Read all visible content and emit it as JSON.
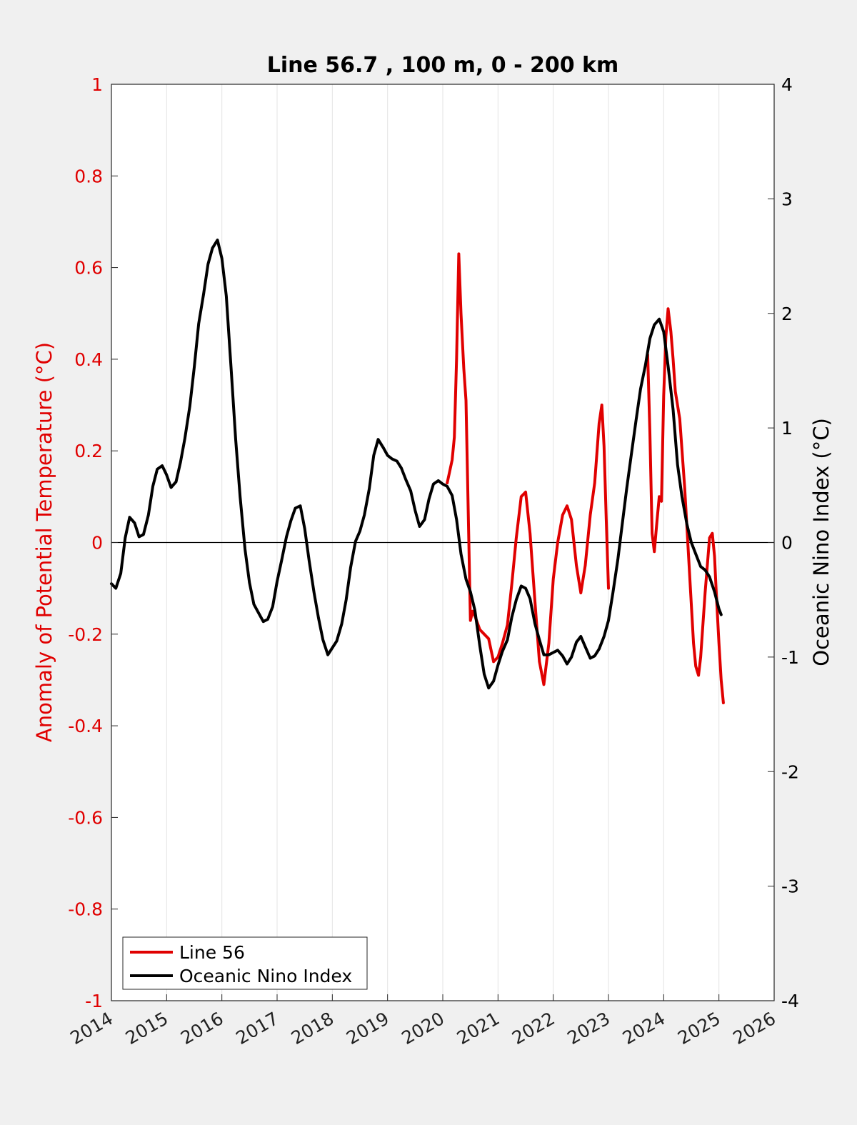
{
  "chart_data": {
    "type": "line",
    "title": "Line 56.7 , 100 m, 0 - 200 km",
    "xlabel": "",
    "ylabel_left": "Anomaly of Potential Temperature (°C)",
    "ylabel_right": "Oceanic Nino Index (°C)",
    "xlim": [
      2014,
      2026
    ],
    "ylim_left": [
      -1,
      1
    ],
    "ylim_right": [
      -4,
      4
    ],
    "x_ticks": [
      "2014",
      "2015",
      "2016",
      "2017",
      "2018",
      "2019",
      "2020",
      "2021",
      "2022",
      "2023",
      "2024",
      "2025",
      "2026"
    ],
    "y_ticks_left": [
      "-1",
      "-0.8",
      "-0.6",
      "-0.4",
      "-0.2",
      "0",
      "0.2",
      "0.4",
      "0.6",
      "0.8",
      "1"
    ],
    "y_ticks_right": [
      "-4",
      "-3",
      "-2",
      "-1",
      "0",
      "1",
      "2",
      "3",
      "4"
    ],
    "grid": "vertical lines at x ticks",
    "zero_line": true,
    "legend_position": "bottom-left",
    "colors": {
      "line56": "#e00000",
      "oni": "#000000"
    },
    "series": [
      {
        "name": "Line 56",
        "axis": "left",
        "color": "#e00000",
        "points": [
          [
            2020.08,
            0.13
          ],
          [
            2020.17,
            0.18
          ],
          [
            2020.21,
            0.23
          ],
          [
            2020.25,
            0.4
          ],
          [
            2020.29,
            0.63
          ],
          [
            2020.33,
            0.5
          ],
          [
            2020.38,
            0.38
          ],
          [
            2020.42,
            0.31
          ],
          [
            2020.46,
            0.07
          ],
          [
            2020.5,
            -0.17
          ],
          [
            2020.54,
            -0.15
          ],
          [
            2020.58,
            -0.16
          ],
          [
            2020.67,
            -0.19
          ],
          [
            2020.75,
            -0.2
          ],
          [
            2020.83,
            -0.21
          ],
          [
            2020.92,
            -0.26
          ],
          [
            2021.0,
            -0.25
          ],
          [
            2021.08,
            -0.22
          ],
          [
            2021.17,
            -0.18
          ],
          [
            2021.25,
            -0.09
          ],
          [
            2021.33,
            0.01
          ],
          [
            2021.42,
            0.1
          ],
          [
            2021.5,
            0.11
          ],
          [
            2021.58,
            0.02
          ],
          [
            2021.67,
            -0.13
          ],
          [
            2021.75,
            -0.26
          ],
          [
            2021.83,
            -0.31
          ],
          [
            2021.92,
            -0.22
          ],
          [
            2022.0,
            -0.08
          ],
          [
            2022.08,
            0.0
          ],
          [
            2022.17,
            0.06
          ],
          [
            2022.25,
            0.08
          ],
          [
            2022.33,
            0.05
          ],
          [
            2022.42,
            -0.05
          ],
          [
            2022.5,
            -0.11
          ],
          [
            2022.58,
            -0.05
          ],
          [
            2022.67,
            0.06
          ],
          [
            2022.75,
            0.13
          ],
          [
            2022.83,
            0.26
          ],
          [
            2022.88,
            0.3
          ],
          [
            2022.92,
            0.21
          ],
          [
            2022.96,
            0.05
          ],
          [
            2023.0,
            -0.1
          ]
        ]
      },
      {
        "name": "Line 56",
        "axis": "left",
        "color": "#e00000",
        "points": [
          [
            2023.71,
            0.41
          ],
          [
            2023.75,
            0.24
          ],
          [
            2023.79,
            0.02
          ],
          [
            2023.83,
            -0.02
          ],
          [
            2023.88,
            0.05
          ],
          [
            2023.92,
            0.1
          ],
          [
            2023.96,
            0.09
          ],
          [
            2024.0,
            0.32
          ],
          [
            2024.04,
            0.45
          ],
          [
            2024.08,
            0.51
          ],
          [
            2024.13,
            0.46
          ],
          [
            2024.17,
            0.4
          ],
          [
            2024.21,
            0.33
          ],
          [
            2024.29,
            0.27
          ],
          [
            2024.38,
            0.12
          ],
          [
            2024.46,
            -0.05
          ],
          [
            2024.54,
            -0.22
          ],
          [
            2024.58,
            -0.27
          ],
          [
            2024.63,
            -0.29
          ],
          [
            2024.67,
            -0.25
          ],
          [
            2024.71,
            -0.18
          ],
          [
            2024.75,
            -0.11
          ],
          [
            2024.79,
            -0.05
          ],
          [
            2024.83,
            0.01
          ],
          [
            2024.88,
            0.02
          ],
          [
            2024.92,
            -0.03
          ],
          [
            2024.96,
            -0.13
          ],
          [
            2025.0,
            -0.22
          ],
          [
            2025.04,
            -0.3
          ],
          [
            2025.08,
            -0.35
          ]
        ]
      },
      {
        "name": "Oceanic Nino Index",
        "axis": "right",
        "color": "#000000",
        "points": [
          [
            2014.0,
            -0.36
          ],
          [
            2014.08,
            -0.4
          ],
          [
            2014.17,
            -0.27
          ],
          [
            2014.25,
            0.04
          ],
          [
            2014.33,
            0.22
          ],
          [
            2014.42,
            0.17
          ],
          [
            2014.5,
            0.05
          ],
          [
            2014.58,
            0.07
          ],
          [
            2014.67,
            0.24
          ],
          [
            2014.75,
            0.49
          ],
          [
            2014.83,
            0.64
          ],
          [
            2014.92,
            0.67
          ],
          [
            2015.0,
            0.59
          ],
          [
            2015.08,
            0.48
          ],
          [
            2015.17,
            0.53
          ],
          [
            2015.25,
            0.7
          ],
          [
            2015.33,
            0.91
          ],
          [
            2015.42,
            1.19
          ],
          [
            2015.5,
            1.53
          ],
          [
            2015.58,
            1.91
          ],
          [
            2015.67,
            2.17
          ],
          [
            2015.75,
            2.43
          ],
          [
            2015.83,
            2.57
          ],
          [
            2015.92,
            2.64
          ],
          [
            2016.0,
            2.48
          ],
          [
            2016.08,
            2.15
          ],
          [
            2016.17,
            1.5
          ],
          [
            2016.25,
            0.9
          ],
          [
            2016.33,
            0.4
          ],
          [
            2016.42,
            -0.06
          ],
          [
            2016.5,
            -0.35
          ],
          [
            2016.58,
            -0.54
          ],
          [
            2016.67,
            -0.62
          ],
          [
            2016.75,
            -0.69
          ],
          [
            2016.83,
            -0.67
          ],
          [
            2016.92,
            -0.56
          ],
          [
            2017.0,
            -0.34
          ],
          [
            2017.08,
            -0.16
          ],
          [
            2017.17,
            0.05
          ],
          [
            2017.25,
            0.19
          ],
          [
            2017.33,
            0.3
          ],
          [
            2017.42,
            0.32
          ],
          [
            2017.5,
            0.12
          ],
          [
            2017.58,
            -0.16
          ],
          [
            2017.67,
            -0.44
          ],
          [
            2017.75,
            -0.66
          ],
          [
            2017.83,
            -0.85
          ],
          [
            2017.92,
            -0.98
          ],
          [
            2018.0,
            -0.92
          ],
          [
            2018.08,
            -0.86
          ],
          [
            2018.17,
            -0.71
          ],
          [
            2018.25,
            -0.5
          ],
          [
            2018.33,
            -0.22
          ],
          [
            2018.42,
            0.01
          ],
          [
            2018.5,
            0.1
          ],
          [
            2018.58,
            0.24
          ],
          [
            2018.67,
            0.47
          ],
          [
            2018.75,
            0.76
          ],
          [
            2018.83,
            0.9
          ],
          [
            2018.92,
            0.83
          ],
          [
            2019.0,
            0.76
          ],
          [
            2019.08,
            0.73
          ],
          [
            2019.17,
            0.71
          ],
          [
            2019.25,
            0.65
          ],
          [
            2019.33,
            0.55
          ],
          [
            2019.42,
            0.45
          ],
          [
            2019.5,
            0.28
          ],
          [
            2019.58,
            0.14
          ],
          [
            2019.67,
            0.2
          ],
          [
            2019.75,
            0.38
          ],
          [
            2019.83,
            0.51
          ],
          [
            2019.92,
            0.54
          ],
          [
            2020.0,
            0.51
          ],
          [
            2020.08,
            0.49
          ],
          [
            2020.17,
            0.41
          ],
          [
            2020.25,
            0.2
          ],
          [
            2020.33,
            -0.1
          ],
          [
            2020.42,
            -0.32
          ],
          [
            2020.5,
            -0.43
          ],
          [
            2020.58,
            -0.59
          ],
          [
            2020.67,
            -0.9
          ],
          [
            2020.75,
            -1.15
          ],
          [
            2020.83,
            -1.27
          ],
          [
            2020.92,
            -1.21
          ],
          [
            2021.0,
            -1.07
          ],
          [
            2021.08,
            -0.95
          ],
          [
            2021.17,
            -0.85
          ],
          [
            2021.25,
            -0.65
          ],
          [
            2021.33,
            -0.5
          ],
          [
            2021.42,
            -0.38
          ],
          [
            2021.5,
            -0.4
          ],
          [
            2021.58,
            -0.49
          ],
          [
            2021.67,
            -0.71
          ],
          [
            2021.75,
            -0.85
          ],
          [
            2021.83,
            -0.98
          ],
          [
            2021.92,
            -0.98
          ],
          [
            2022.0,
            -0.96
          ],
          [
            2022.08,
            -0.94
          ],
          [
            2022.17,
            -0.99
          ],
          [
            2022.25,
            -1.06
          ],
          [
            2022.33,
            -1.0
          ],
          [
            2022.42,
            -0.87
          ],
          [
            2022.5,
            -0.82
          ],
          [
            2022.58,
            -0.91
          ],
          [
            2022.67,
            -1.01
          ],
          [
            2022.75,
            -0.99
          ],
          [
            2022.83,
            -0.93
          ],
          [
            2022.92,
            -0.82
          ],
          [
            2023.0,
            -0.68
          ],
          [
            2023.08,
            -0.44
          ],
          [
            2023.17,
            -0.15
          ],
          [
            2023.25,
            0.16
          ],
          [
            2023.33,
            0.47
          ],
          [
            2023.42,
            0.79
          ],
          [
            2023.5,
            1.07
          ],
          [
            2023.58,
            1.34
          ],
          [
            2023.67,
            1.55
          ],
          [
            2023.75,
            1.78
          ],
          [
            2023.83,
            1.9
          ],
          [
            2023.92,
            1.95
          ],
          [
            2024.0,
            1.84
          ],
          [
            2024.08,
            1.54
          ],
          [
            2024.17,
            1.16
          ],
          [
            2024.25,
            0.68
          ],
          [
            2024.33,
            0.4
          ],
          [
            2024.42,
            0.16
          ],
          [
            2024.5,
            0.0
          ],
          [
            2024.58,
            -0.1
          ],
          [
            2024.67,
            -0.21
          ],
          [
            2024.75,
            -0.24
          ],
          [
            2024.83,
            -0.3
          ],
          [
            2024.92,
            -0.43
          ],
          [
            2025.0,
            -0.58
          ],
          [
            2025.04,
            -0.63
          ]
        ]
      }
    ],
    "legend": [
      {
        "label": "Line 56",
        "color": "#e00000"
      },
      {
        "label": "Oceanic Nino Index",
        "color": "#000000"
      }
    ]
  }
}
